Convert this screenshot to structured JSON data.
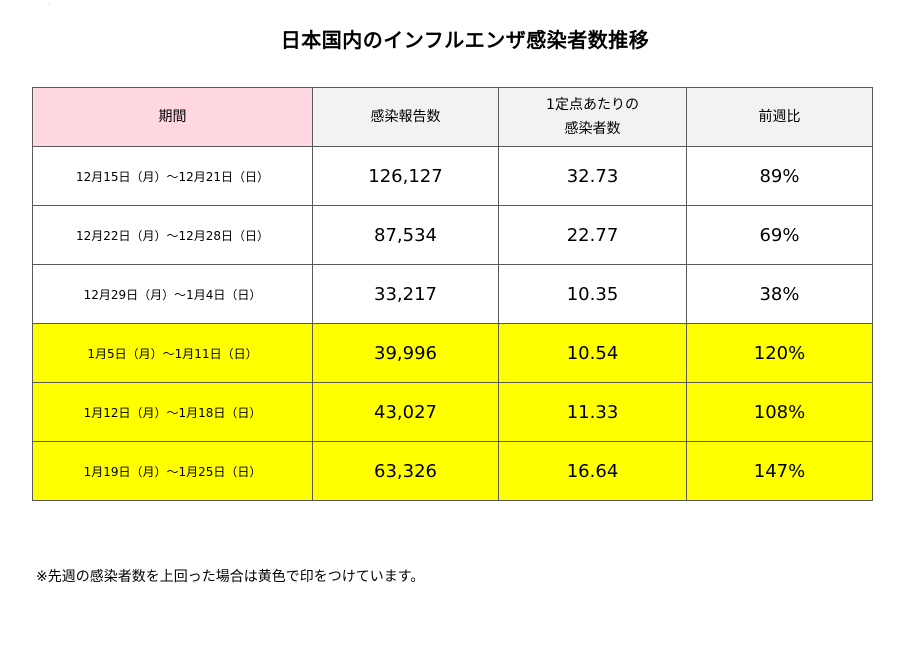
{
  "title": "日本国内のインフルエンザ感染者数推移",
  "headers": {
    "period": "期間",
    "reports": "感染報告数",
    "per_point_line1": "1定点あたりの",
    "per_point_line2": "感染者数",
    "wow": "前週比"
  },
  "rows": [
    {
      "period": "12月15日（月）～12月21日（日）",
      "reports": "126,127",
      "per_point": "32.73",
      "wow": "89%",
      "highlight": false
    },
    {
      "period": "12月22日（月）～12月28日（日）",
      "reports": "87,534",
      "per_point": "22.77",
      "wow": "69%",
      "highlight": false
    },
    {
      "period": "12月29日（月）～1月4日（日）",
      "reports": "33,217",
      "per_point": "10.35",
      "wow": "38%",
      "highlight": false
    },
    {
      "period": "1月5日（月）～1月11日（日）",
      "reports": "39,996",
      "per_point": "10.54",
      "wow": "120%",
      "highlight": true
    },
    {
      "period": "1月12日（月）～1月18日（日）",
      "reports": "43,027",
      "per_point": "11.33",
      "wow": "108%",
      "highlight": true
    },
    {
      "period": "1月19日（月）～1月25日（日）",
      "reports": "63,326",
      "per_point": "16.64",
      "wow": "147%",
      "highlight": true
    }
  ],
  "note": "※先週の感染者数を上回った場合は黄色で印をつけています。",
  "colors": {
    "highlight": "#ffff00",
    "period_header": "#ffd7e0",
    "header_bg": "#f2f2f2"
  }
}
